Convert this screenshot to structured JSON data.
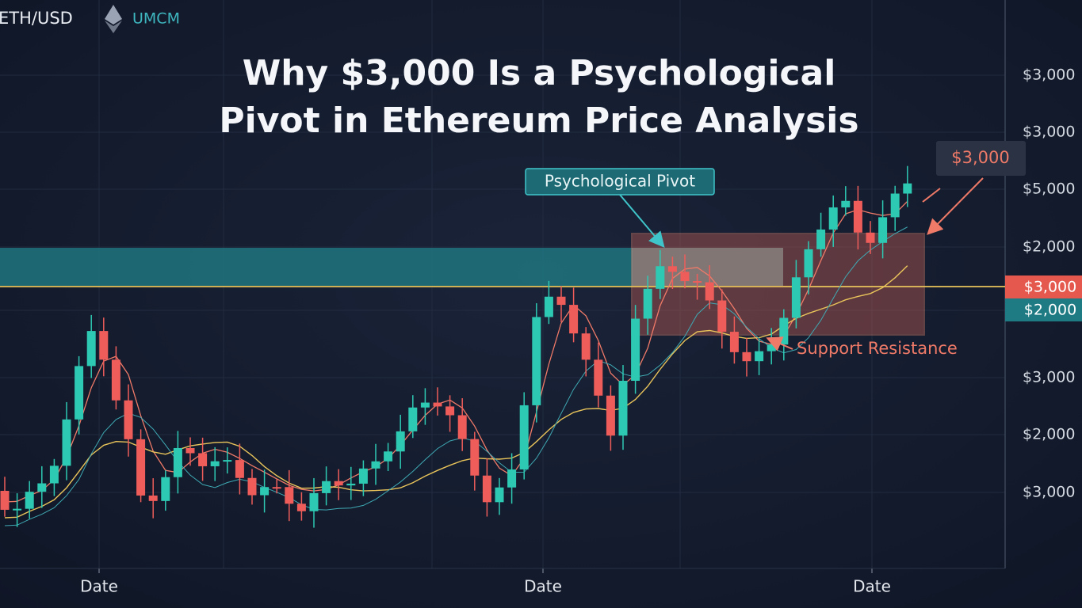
{
  "header": {
    "symbol": "ETH/USD",
    "exchange": "UMCM"
  },
  "title": [
    "Why $3,000 Is a Psychological",
    "Pivot in Ethereum Price Analysis"
  ],
  "annotations": {
    "pivot": "Psychological Pivot",
    "target": "$3,000",
    "zone": "Support Resistance"
  },
  "price_axis": [
    "$3,000",
    "$3,000",
    "$5,000",
    "$2,000",
    "$3,000",
    "$2,000",
    "$3,000"
  ],
  "price_markers": [
    "$3,000",
    "$2,000"
  ],
  "date_axis": [
    "Date",
    "Date",
    "Date"
  ]
}
